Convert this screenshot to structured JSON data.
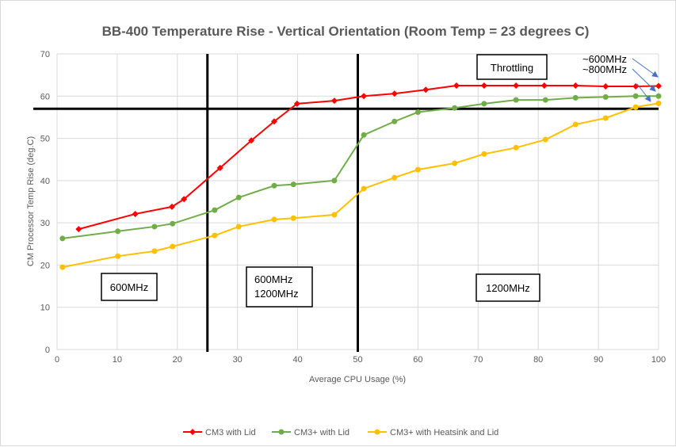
{
  "chart_data": {
    "type": "line",
    "title": "BB-400 Temperature Rise - Vertical Orientation (Room Temp = 23 degrees C)",
    "xlabel": "Average CPU Usage (%)",
    "ylabel": "CM Processor Temp Rise (deg.C)",
    "xlim": [
      0,
      100
    ],
    "ylim": [
      0,
      70
    ],
    "xticks": [
      0,
      10,
      20,
      30,
      40,
      50,
      60,
      70,
      80,
      90,
      100
    ],
    "yticks": [
      0,
      10,
      20,
      30,
      40,
      50,
      60,
      70
    ],
    "grid": true,
    "legend": "bottom",
    "series": [
      {
        "name": "CM3 with Lid",
        "color": "#ff0000",
        "marker": "diamond",
        "x": [
          3.6,
          13,
          19.1,
          21.1,
          27.1,
          32.3,
          36.1,
          39.9,
          46.1,
          51,
          56.1,
          61.3,
          66.4,
          71,
          76.3,
          81,
          86.2,
          91.2,
          96.2,
          100
        ],
        "y": [
          28.5,
          32.1,
          33.8,
          35.6,
          43,
          49.5,
          54,
          58.2,
          58.9,
          60,
          60.6,
          61.5,
          62.5,
          62.5,
          62.5,
          62.5,
          62.5,
          62.3,
          62.3,
          62.4
        ]
      },
      {
        "name": "CM3+ with Lid",
        "color": "#70ad47",
        "marker": "circle",
        "x": [
          0.9,
          10.1,
          16.2,
          19.2,
          26.2,
          30.2,
          36.1,
          39.3,
          46.1,
          51,
          56.1,
          60,
          66.1,
          71,
          76.3,
          81.2,
          86.2,
          91.2,
          96.2,
          100
        ],
        "y": [
          26.3,
          28,
          29.1,
          29.8,
          33,
          36,
          38.8,
          39.1,
          40,
          50.8,
          54,
          56.2,
          57.2,
          58.2,
          59.1,
          59.1,
          59.6,
          59.8,
          60,
          60
        ]
      },
      {
        "name": "CM3+ with Heatsink and Lid",
        "color": "#ffc000",
        "marker": "circle",
        "x": [
          0.9,
          10.1,
          16.2,
          19.2,
          26.2,
          30.2,
          36.1,
          39.3,
          46.1,
          51,
          56.1,
          60,
          66.1,
          71,
          76.3,
          81.2,
          86.2,
          91.2,
          96.2,
          100
        ],
        "y": [
          19.5,
          22.1,
          23.3,
          24.4,
          27,
          29.1,
          30.8,
          31.1,
          31.9,
          38.1,
          40.7,
          42.6,
          44.1,
          46.3,
          47.8,
          49.7,
          53.3,
          54.8,
          57.4,
          58.3
        ]
      }
    ],
    "reference_lines": {
      "vertical_x": [
        25,
        50
      ],
      "horizontal_y": [
        57
      ]
    },
    "annotations": {
      "region1": "600MHz",
      "region2_line1": "600MHz",
      "region2_line2": "1200MHz",
      "region3": "1200MHz",
      "throttling": "Throttling",
      "arrow1": "~600MHz",
      "arrow2": "~800MHz"
    },
    "arrow_color": "#4472c4"
  }
}
